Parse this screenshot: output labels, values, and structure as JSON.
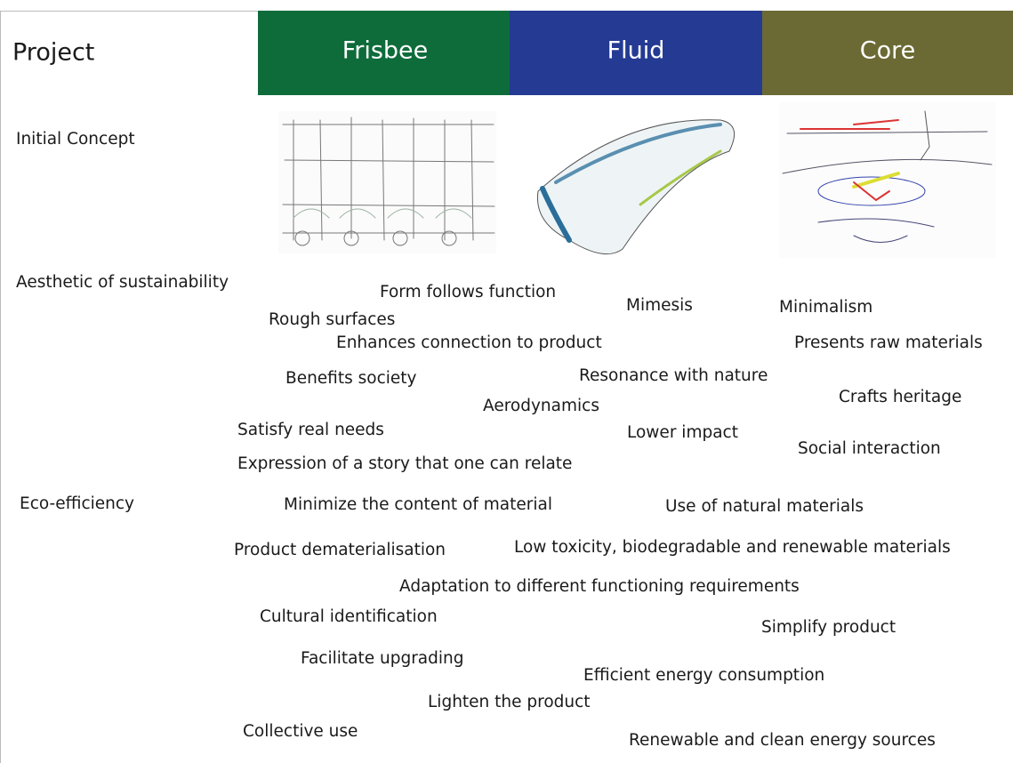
{
  "header": {
    "label": "Project",
    "columns": [
      "Frisbee",
      "Fluid",
      "Core"
    ]
  },
  "rows": [
    "Initial Concept",
    "Aesthetic of sustainability",
    "Eco-efficiency"
  ],
  "terms": [
    "Form follows function",
    "Mimesis",
    "Minimalism",
    "Rough surfaces",
    "Enhances connection to product",
    "Presents raw materials",
    "Benefits society",
    "Resonance with nature",
    "Crafts heritage",
    "Aerodynamics",
    "Satisfy real needs",
    "Lower impact",
    "Social interaction",
    "Expression of a story that one can relate",
    "Minimize the content of material",
    "Use of natural materials",
    "Product dematerialisation",
    "Low toxicity, biodegradable and renewable materials",
    "Adaptation to different functioning requirements",
    "Cultural identification",
    "Simplify product",
    "Facilitate upgrading",
    "Efficient energy consumption",
    "Lighten the product",
    "Collective use",
    "Renewable and clean energy sources"
  ]
}
